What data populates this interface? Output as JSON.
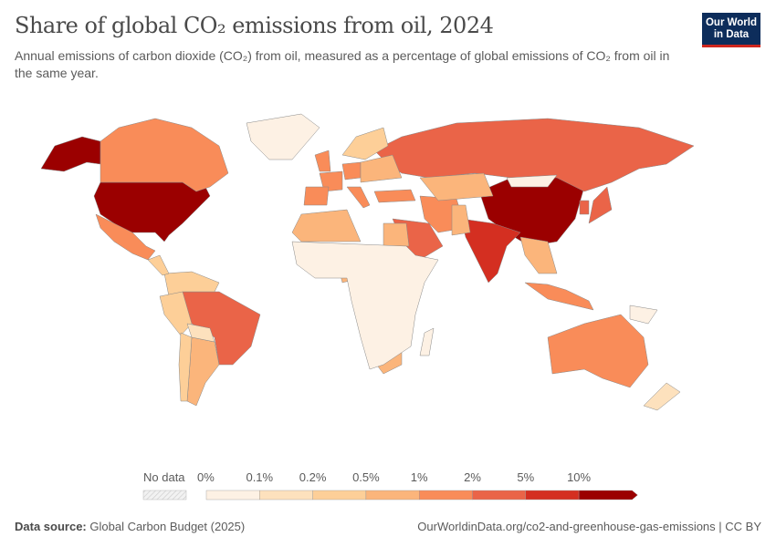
{
  "header": {
    "title": "Share of global CO₂ emissions from oil, 2024",
    "subtitle": "Annual emissions of carbon dioxide (CO₂) from oil, measured as a percentage of global emissions of CO₂ from oil in the same year.",
    "logo_text": "Our World in Data"
  },
  "footer": {
    "source_label": "Data source:",
    "source": "Global Carbon Budget (2025)",
    "url": "OurWorldinData.org/co2-and-greenhouse-gas-emissions | CC BY"
  },
  "chart_data": {
    "type": "map",
    "title": "Share of global CO₂ emissions from oil, 2024",
    "legend": {
      "no_data_label": "No data",
      "no_data_color": "#e6e6e6",
      "tick_labels": [
        "0%",
        "0.1%",
        "0.2%",
        "0.5%",
        "1%",
        "2%",
        "5%",
        "10%"
      ],
      "bins": [
        {
          "range": "0–0.1%",
          "color": "#fdf1e4"
        },
        {
          "range": "0.1–0.2%",
          "color": "#fde1bd"
        },
        {
          "range": "0.2–0.5%",
          "color": "#fdcf98"
        },
        {
          "range": "0.5–1%",
          "color": "#fbb57b"
        },
        {
          "range": "1–2%",
          "color": "#f98c59"
        },
        {
          "range": "2–5%",
          "color": "#ea6448"
        },
        {
          "range": "5–10%",
          "color": "#d42f21"
        },
        {
          "range": ">10%",
          "color": "#9b0000"
        }
      ]
    },
    "countries": [
      {
        "name": "United States",
        "bin": 7
      },
      {
        "name": "Alaska (US)",
        "bin": 7
      },
      {
        "name": "China",
        "bin": 7
      },
      {
        "name": "India",
        "bin": 6
      },
      {
        "name": "Russia",
        "bin": 5
      },
      {
        "name": "Brazil",
        "bin": 5
      },
      {
        "name": "Japan",
        "bin": 5
      },
      {
        "name": "Saudi Arabia",
        "bin": 5
      },
      {
        "name": "South Korea",
        "bin": 5
      },
      {
        "name": "Canada",
        "bin": 4
      },
      {
        "name": "Mexico",
        "bin": 4
      },
      {
        "name": "Australia",
        "bin": 4
      },
      {
        "name": "Indonesia",
        "bin": 4
      },
      {
        "name": "Germany",
        "bin": 4
      },
      {
        "name": "Iran",
        "bin": 4
      },
      {
        "name": "France",
        "bin": 4
      },
      {
        "name": "Spain",
        "bin": 4
      },
      {
        "name": "Italy",
        "bin": 4
      },
      {
        "name": "United Kingdom",
        "bin": 4
      },
      {
        "name": "Turkey",
        "bin": 4
      },
      {
        "name": "Argentina",
        "bin": 3
      },
      {
        "name": "Kazakhstan",
        "bin": 3
      },
      {
        "name": "Egypt",
        "bin": 3
      },
      {
        "name": "Algeria",
        "bin": 3
      },
      {
        "name": "Eastern Europe",
        "bin": 3
      },
      {
        "name": "Southeast Asia",
        "bin": 3
      },
      {
        "name": "Nigeria",
        "bin": 3
      },
      {
        "name": "Pakistan",
        "bin": 3
      },
      {
        "name": "South Africa",
        "bin": 3
      },
      {
        "name": "Colombia/Venezuela",
        "bin": 2
      },
      {
        "name": "Peru",
        "bin": 2
      },
      {
        "name": "Chile",
        "bin": 2
      },
      {
        "name": "Scandinavia",
        "bin": 2
      },
      {
        "name": "Bolivia",
        "bin": 1
      },
      {
        "name": "Mongolia",
        "bin": 0
      },
      {
        "name": "Sub-Saharan Africa",
        "bin": 0
      },
      {
        "name": "Greenland",
        "bin": 0
      },
      {
        "name": "New Zealand",
        "bin": 1
      },
      {
        "name": "Papua New Guinea",
        "bin": 0
      },
      {
        "name": "Madagascar",
        "bin": 0
      },
      {
        "name": "Central America",
        "bin": 2
      }
    ]
  }
}
